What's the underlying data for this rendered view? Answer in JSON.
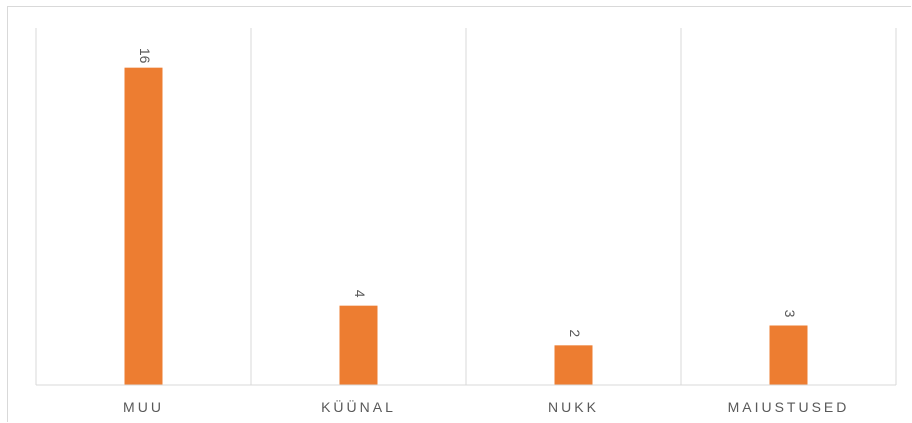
{
  "chart_data": {
    "type": "bar",
    "categories": [
      "MUU",
      "KÜÜNAL",
      "NUKK",
      "MAIUSTUSED"
    ],
    "values": [
      16,
      4,
      2,
      3
    ],
    "data_labels": [
      "16",
      "4",
      "2",
      "3"
    ],
    "title": "",
    "xlabel": "",
    "ylabel": "",
    "ylim": [
      0,
      18
    ],
    "grid": "vertical",
    "legend": "none",
    "bar_color": "#ED7D31",
    "grid_color": "#D9D9D9",
    "text_color": "#595959"
  }
}
